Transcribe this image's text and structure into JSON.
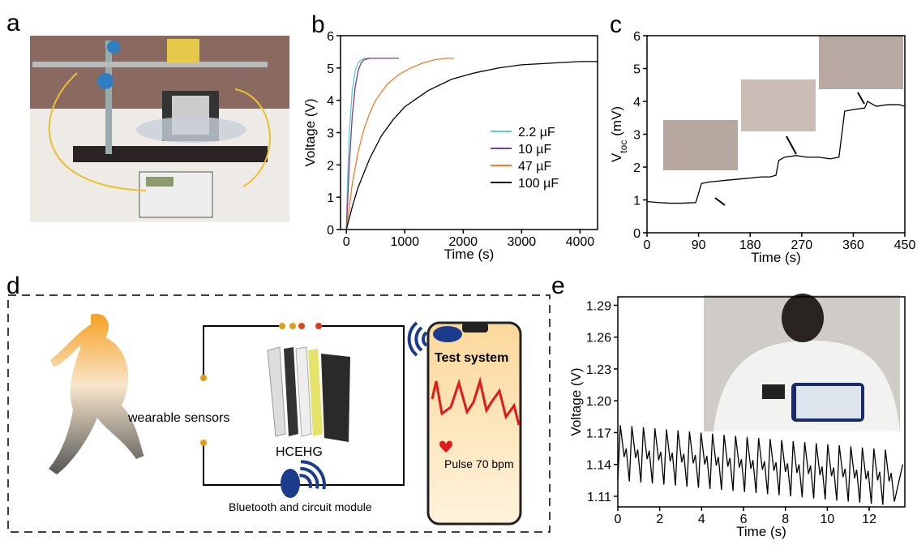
{
  "panel_labels": [
    "a",
    "b",
    "c",
    "d",
    "e"
  ],
  "chart_data": [
    {
      "type": "line",
      "xlabel": "Time (s)",
      "ylabel": [
        "Voltage (V)"
      ],
      "xlim": [
        -100,
        4300
      ],
      "xticks": [
        0,
        1000,
        2000,
        3000,
        4000
      ],
      "ylim": [
        0,
        6
      ],
      "yticks": [
        0,
        1,
        2,
        3,
        4,
        5,
        6
      ],
      "legend": "right",
      "series": [
        {
          "name": "2.2 µF",
          "color": "#5fc9cf",
          "x": [
            0,
            20,
            50,
            100,
            150,
            200,
            250,
            300,
            350,
            400
          ],
          "values": [
            0,
            1.5,
            3,
            4.3,
            4.9,
            5.15,
            5.25,
            5.3,
            5.3,
            5.3
          ]
        },
        {
          "name": "10 µF",
          "color": "#7b3f8f",
          "x": [
            0,
            25,
            50,
            100,
            150,
            200,
            250,
            300,
            400,
            600,
            900
          ],
          "values": [
            0,
            1.0,
            2.0,
            3.5,
            4.4,
            4.9,
            5.15,
            5.25,
            5.3,
            5.3,
            5.3
          ]
        },
        {
          "name": "47 µF",
          "color": "#f07c28",
          "x": [
            0,
            50,
            100,
            200,
            300,
            400,
            500,
            700,
            900,
            1100,
            1300,
            1500,
            1700,
            1850
          ],
          "values": [
            0,
            0.7,
            1.4,
            2.4,
            3.1,
            3.6,
            4.0,
            4.5,
            4.8,
            5.0,
            5.15,
            5.25,
            5.3,
            5.3
          ]
        },
        {
          "name": "100 µF",
          "color": "#000000",
          "x": [
            0,
            100,
            200,
            400,
            600,
            800,
            1000,
            1400,
            1800,
            2200,
            2600,
            3000,
            3500,
            4000,
            4300
          ],
          "values": [
            0,
            0.7,
            1.3,
            2.2,
            2.9,
            3.4,
            3.8,
            4.3,
            4.65,
            4.85,
            5.0,
            5.1,
            5.15,
            5.2,
            5.2
          ]
        }
      ]
    },
    {
      "type": "line",
      "xlabel": "Time (s)",
      "ylabel": [
        "V",
        "toc",
        "(mV)"
      ],
      "xlim": [
        0,
        450
      ],
      "xticks": [
        0,
        90,
        180,
        270,
        360,
        450
      ],
      "ylim": [
        0,
        6
      ],
      "yticks": [
        0,
        1,
        2,
        3,
        4,
        5,
        6
      ],
      "series": [
        {
          "color": "#000000",
          "x": [
            0,
            20,
            40,
            60,
            85,
            90,
            95,
            110,
            140,
            170,
            200,
            215,
            225,
            230,
            240,
            260,
            280,
            300,
            320,
            335,
            340,
            345,
            360,
            380,
            385,
            400,
            420,
            440,
            450
          ],
          "values": [
            0.95,
            0.92,
            0.9,
            0.9,
            0.92,
            1.2,
            1.5,
            1.55,
            1.6,
            1.65,
            1.7,
            1.7,
            1.75,
            2.2,
            2.3,
            2.35,
            2.3,
            2.3,
            2.25,
            2.3,
            3.0,
            3.7,
            3.75,
            3.8,
            4.0,
            3.85,
            3.9,
            3.9,
            3.85
          ]
        }
      ]
    },
    {
      "type": "line",
      "xlabel": "Time (s)",
      "ylabel": [
        "Voltage (V)"
      ],
      "xlim": [
        0,
        13.7
      ],
      "xticks": [
        0,
        2,
        4,
        6,
        8,
        10,
        12
      ],
      "ylim": [
        1.1,
        1.298
      ],
      "yticks": [
        1.11,
        1.14,
        1.17,
        {
          "value": 1.2,
          "label": "1.20"
        },
        1.23,
        1.26,
        1.29
      ],
      "series": [
        {
          "color": "#000000",
          "x": [
            0,
            0.12,
            0.3,
            0.4,
            0.55,
            0.67,
            0.85,
            0.95,
            1.1,
            1.22,
            1.4,
            1.5,
            1.65,
            1.77,
            1.95,
            2.05,
            2.2,
            2.32,
            2.5,
            2.6,
            2.75,
            2.87,
            3.05,
            3.15,
            3.3,
            3.42,
            3.6,
            3.7,
            3.85,
            3.97,
            4.15,
            4.25,
            4.4,
            4.52,
            4.7,
            4.8,
            4.95,
            5.07,
            5.25,
            5.35,
            5.5,
            5.62,
            5.8,
            5.9,
            6.05,
            6.17,
            6.35,
            6.45,
            6.6,
            6.72,
            6.9,
            7.0,
            7.15,
            7.27,
            7.45,
            7.55,
            7.7,
            7.82,
            8.0,
            8.1,
            8.25,
            8.37,
            8.55,
            8.65,
            8.8,
            8.92,
            9.1,
            9.2,
            9.35,
            9.47,
            9.65,
            9.75,
            9.9,
            10.02,
            10.2,
            10.3,
            10.45,
            10.57,
            10.75,
            10.85,
            11.0,
            11.12,
            11.3,
            11.4,
            11.55,
            11.67,
            11.85,
            11.95,
            12.1,
            12.22,
            12.4,
            12.5,
            12.65,
            12.77,
            12.95,
            13.05,
            13.2,
            13.6
          ],
          "values": [
            1.125,
            1.177,
            1.147,
            1.155,
            1.124,
            1.176,
            1.146,
            1.154,
            1.123,
            1.175,
            1.145,
            1.153,
            1.122,
            1.174,
            1.144,
            1.152,
            1.121,
            1.173,
            1.143,
            1.151,
            1.12,
            1.172,
            1.142,
            1.15,
            1.119,
            1.171,
            1.141,
            1.149,
            1.118,
            1.17,
            1.14,
            1.148,
            1.117,
            1.169,
            1.139,
            1.147,
            1.116,
            1.168,
            1.138,
            1.146,
            1.115,
            1.167,
            1.137,
            1.145,
            1.114,
            1.166,
            1.136,
            1.144,
            1.113,
            1.165,
            1.135,
            1.143,
            1.112,
            1.164,
            1.134,
            1.142,
            1.111,
            1.163,
            1.133,
            1.141,
            1.11,
            1.162,
            1.132,
            1.14,
            1.109,
            1.161,
            1.131,
            1.139,
            1.108,
            1.16,
            1.13,
            1.138,
            1.107,
            1.159,
            1.129,
            1.137,
            1.106,
            1.158,
            1.128,
            1.136,
            1.105,
            1.157,
            1.127,
            1.135,
            1.104,
            1.156,
            1.126,
            1.134,
            1.103,
            1.155,
            1.125,
            1.133,
            1.102,
            1.154,
            1.124,
            1.132,
            1.105,
            1.14
          ]
        }
      ]
    }
  ],
  "diagram": {
    "sensors": "wearable sensors",
    "device": "HCEHG",
    "module": "Bluetooth and circuit module",
    "screen": "Test system",
    "pulse": "Pulse 70 bpm"
  }
}
